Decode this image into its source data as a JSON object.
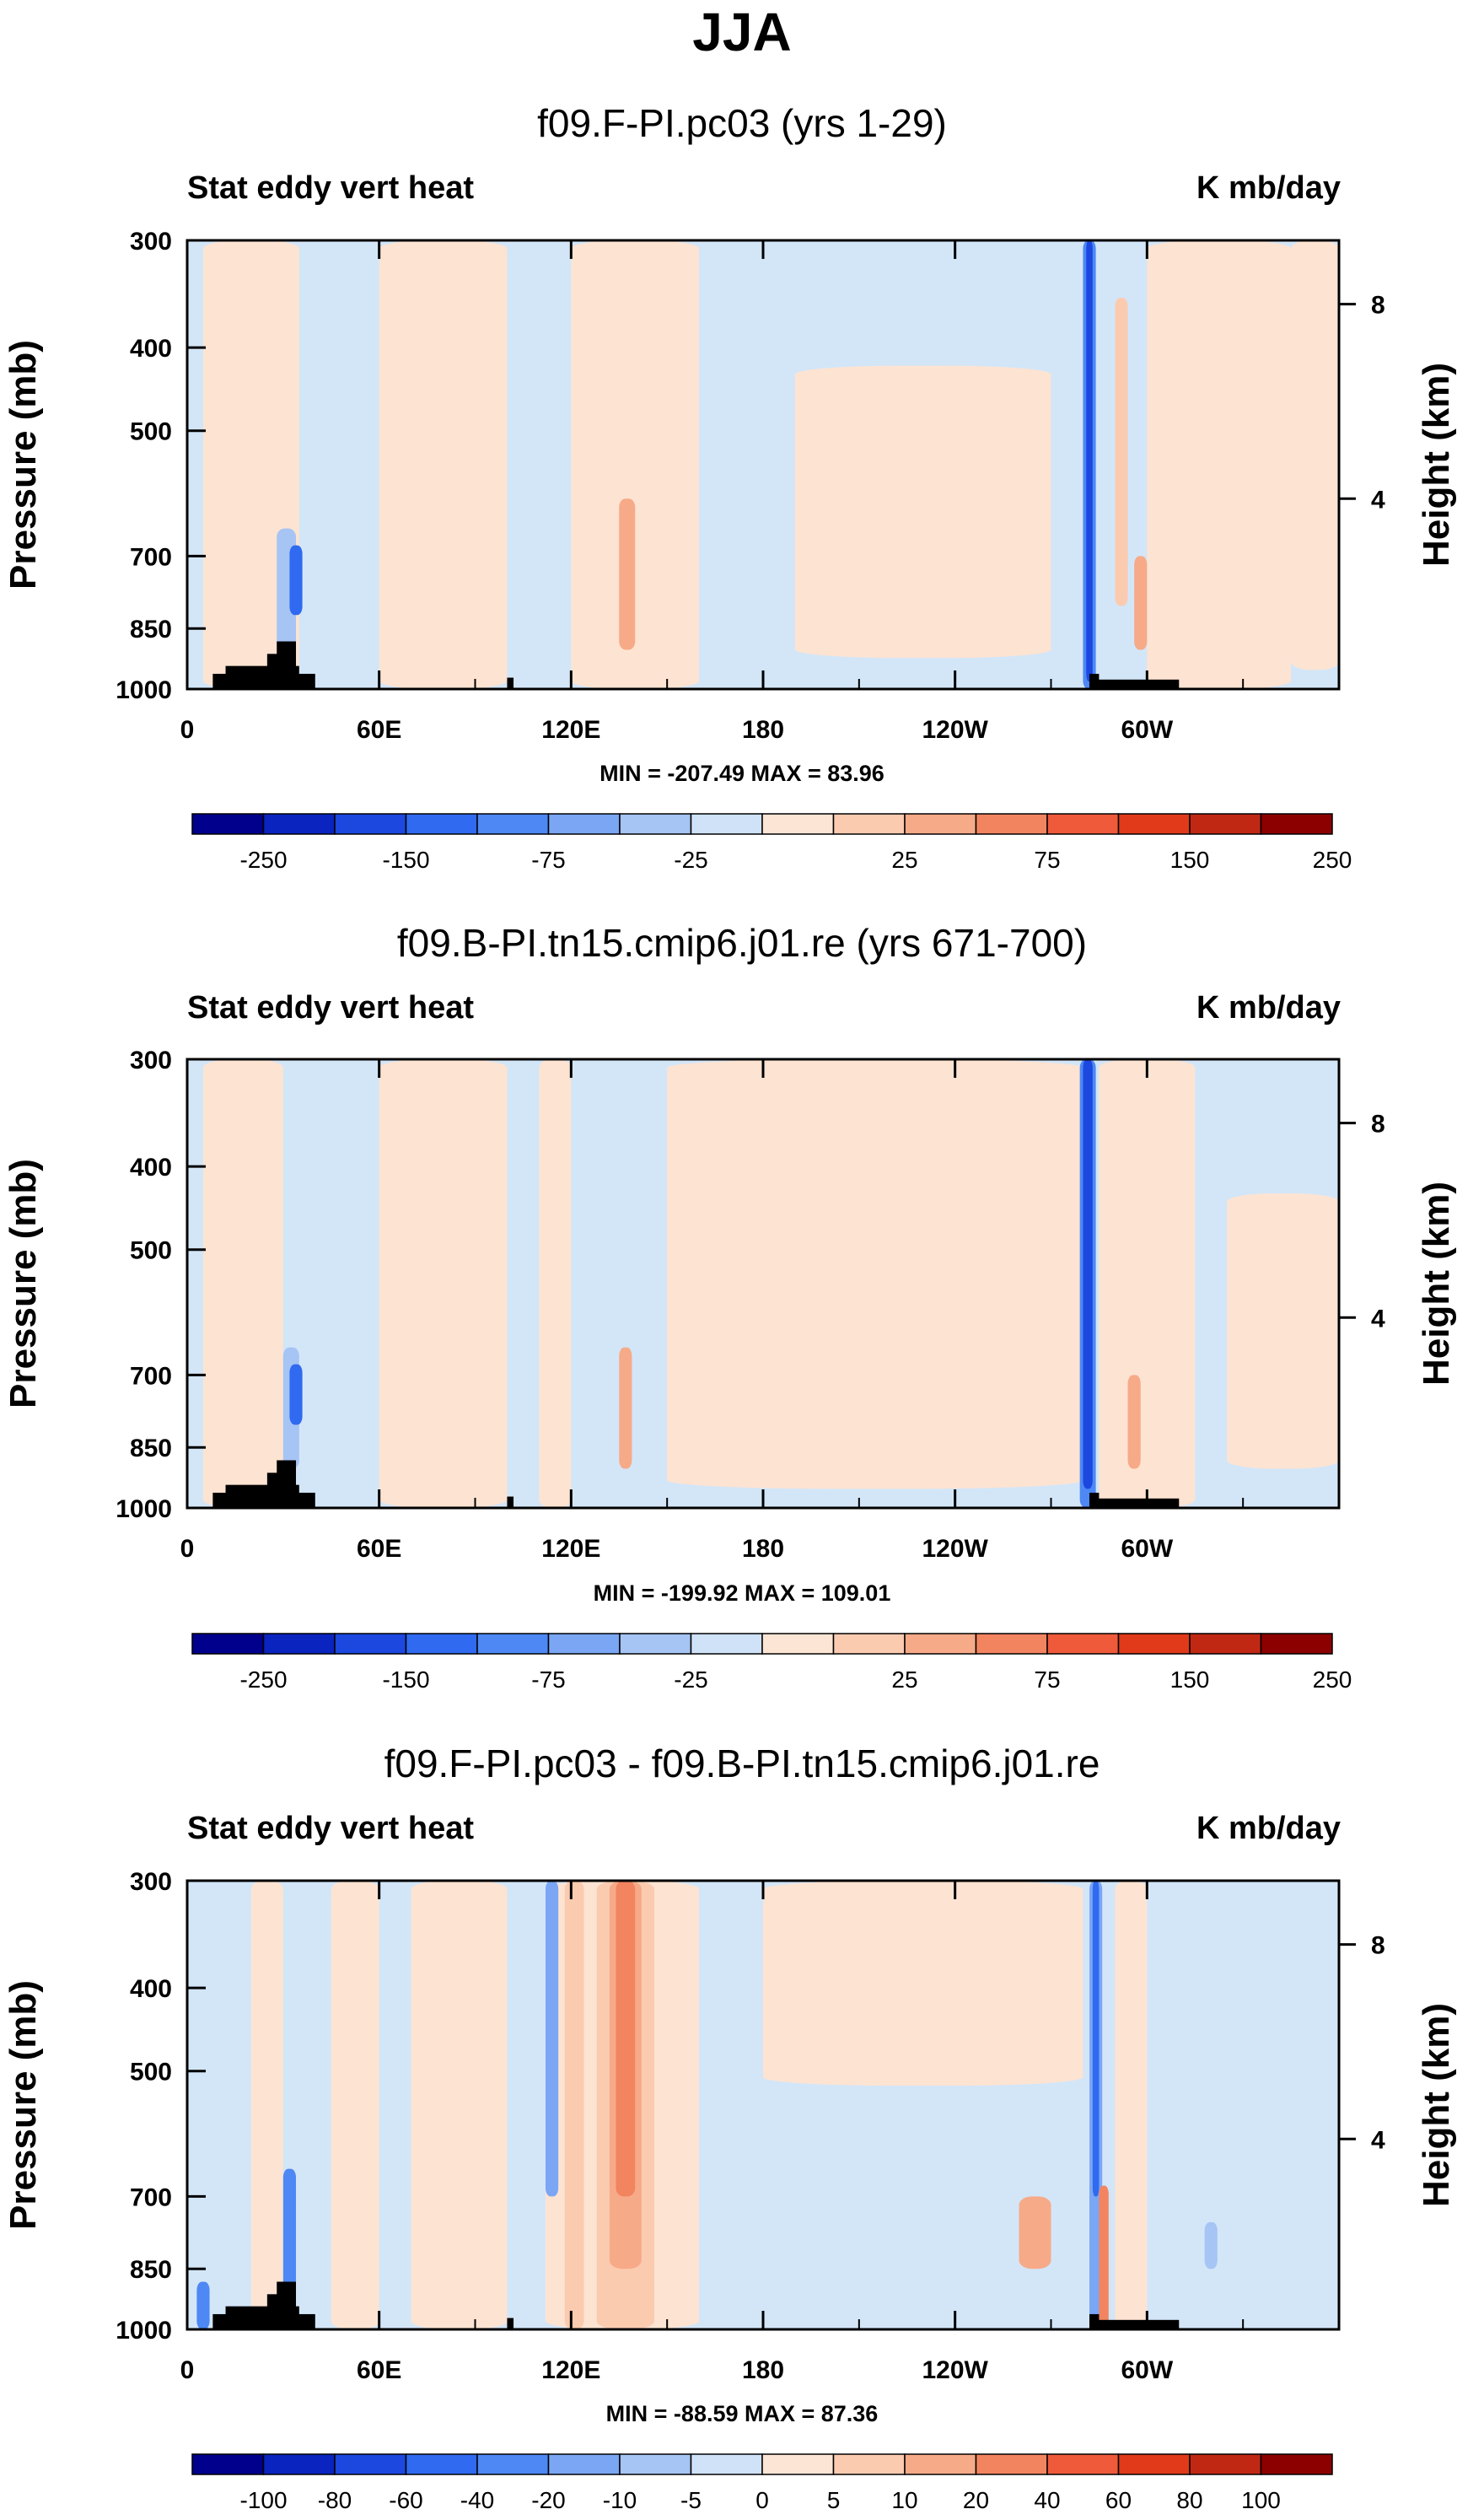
{
  "title": "JJA",
  "chart_data": [
    {
      "type": "heatmap",
      "title": "f09.F-PI.pc03 (yrs 1-29)",
      "left_string": "Stat eddy vert heat",
      "right_string": "K mb/day",
      "ylabel": "Pressure (mb)",
      "ylabel_right": "Height (km)",
      "x_ticks": [
        "0",
        "60E",
        "120E",
        "180",
        "120W",
        "60W"
      ],
      "y_ticks": [
        "300",
        "400",
        "500",
        "700",
        "850",
        "1000"
      ],
      "y_right_ticks": [
        "8",
        "4"
      ],
      "minmax": "MIN = -207.49  MAX = 83.96",
      "colorbar_labels": [
        "-250",
        "-150",
        "-75",
        "-25",
        "25",
        "75",
        "150",
        "250"
      ]
    },
    {
      "type": "heatmap",
      "title": "f09.B-PI.tn15.cmip6.j01.re (yrs 671-700)",
      "left_string": "Stat eddy vert heat",
      "right_string": "K mb/day",
      "ylabel": "Pressure (mb)",
      "ylabel_right": "Height (km)",
      "x_ticks": [
        "0",
        "60E",
        "120E",
        "180",
        "120W",
        "60W"
      ],
      "y_ticks": [
        "300",
        "400",
        "500",
        "700",
        "850",
        "1000"
      ],
      "y_right_ticks": [
        "8",
        "4"
      ],
      "minmax": "MIN = -199.92  MAX = 109.01",
      "colorbar_labels": [
        "-250",
        "-150",
        "-75",
        "-25",
        "25",
        "75",
        "150",
        "250"
      ]
    },
    {
      "type": "heatmap",
      "title": "f09.F-PI.pc03 - f09.B-PI.tn15.cmip6.j01.re",
      "left_string": "Stat eddy vert heat",
      "right_string": "K mb/day",
      "ylabel": "Pressure (mb)",
      "ylabel_right": "Height (km)",
      "x_ticks": [
        "0",
        "60E",
        "120E",
        "180",
        "120W",
        "60W"
      ],
      "y_ticks": [
        "300",
        "400",
        "500",
        "700",
        "850",
        "1000"
      ],
      "y_right_ticks": [
        "8",
        "4"
      ],
      "minmax": "MIN = -88.59  MAX = 87.36",
      "colorbar_labels": [
        "-100",
        "-80",
        "-60",
        "-40",
        "-20",
        "-10",
        "-5",
        "0",
        "5",
        "10",
        "20",
        "40",
        "60",
        "80",
        "100"
      ]
    }
  ],
  "colors": {
    "cb18": [
      "#00008c",
      "#0a24c0",
      "#1c48e0",
      "#2f6af0",
      "#4d88f4",
      "#7aa6f4",
      "#a6c4f4",
      "#cfe2f8",
      "#fde5d5",
      "#fbcbb0",
      "#f7aa88",
      "#f28460",
      "#ee5a3a",
      "#e03a1a",
      "#c02814",
      "#8c0000"
    ],
    "cb16": [
      "#00008c",
      "#0a24c0",
      "#1c48e0",
      "#2f6af0",
      "#4d88f4",
      "#7aa6f4",
      "#a6c4f4",
      "#cfe2f8",
      "#fde5d5",
      "#fbcbb0",
      "#f7aa88",
      "#f28460",
      "#ee5a3a",
      "#e03a1a",
      "#c02814",
      "#8c0000"
    ],
    "light_blue": "#d3e6f8",
    "light_orange": "#fde3d2",
    "topo": "#000000"
  }
}
